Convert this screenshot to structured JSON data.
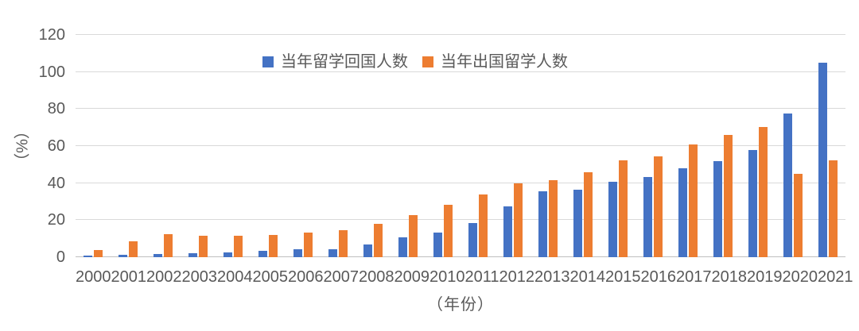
{
  "chart_data": {
    "type": "bar",
    "title": "",
    "categories": [
      "2000",
      "2001",
      "2002",
      "2003",
      "2004",
      "2005",
      "2006",
      "2007",
      "2008",
      "2009",
      "2010",
      "2011",
      "2012",
      "2013",
      "2014",
      "2015",
      "2016",
      "2017",
      "2018",
      "2019",
      "2020",
      "2021"
    ],
    "series": [
      {
        "name": "当年留学回国人数",
        "color": "#4472C4",
        "values": [
          1.0,
          1.2,
          1.8,
          2.0,
          2.5,
          3.5,
          4.2,
          4.4,
          6.9,
          10.8,
          13.5,
          18.6,
          27.3,
          35.4,
          36.5,
          40.9,
          43.3,
          48.1,
          51.9,
          58.0,
          77.7,
          104.9
        ]
      },
      {
        "name": "当年出国留学人数",
        "color": "#ED7D31",
        "values": [
          4.0,
          8.4,
          12.5,
          11.7,
          11.5,
          11.9,
          13.4,
          14.4,
          18.0,
          22.9,
          28.5,
          34.0,
          40.0,
          41.4,
          46.0,
          52.4,
          54.5,
          60.8,
          66.2,
          70.4,
          45.1,
          52.4
        ]
      }
    ],
    "ylabel": "（%）",
    "xlabel": "（年份）",
    "ylim": [
      0,
      120
    ],
    "y_ticks": [
      0,
      20,
      40,
      60,
      80,
      100,
      120
    ],
    "grid": true,
    "legend_position": "top-center",
    "colors": {
      "gridline": "#d9d9d9",
      "axis_line": "#bfbfbf",
      "text": "#595959",
      "background": "#ffffff"
    }
  }
}
